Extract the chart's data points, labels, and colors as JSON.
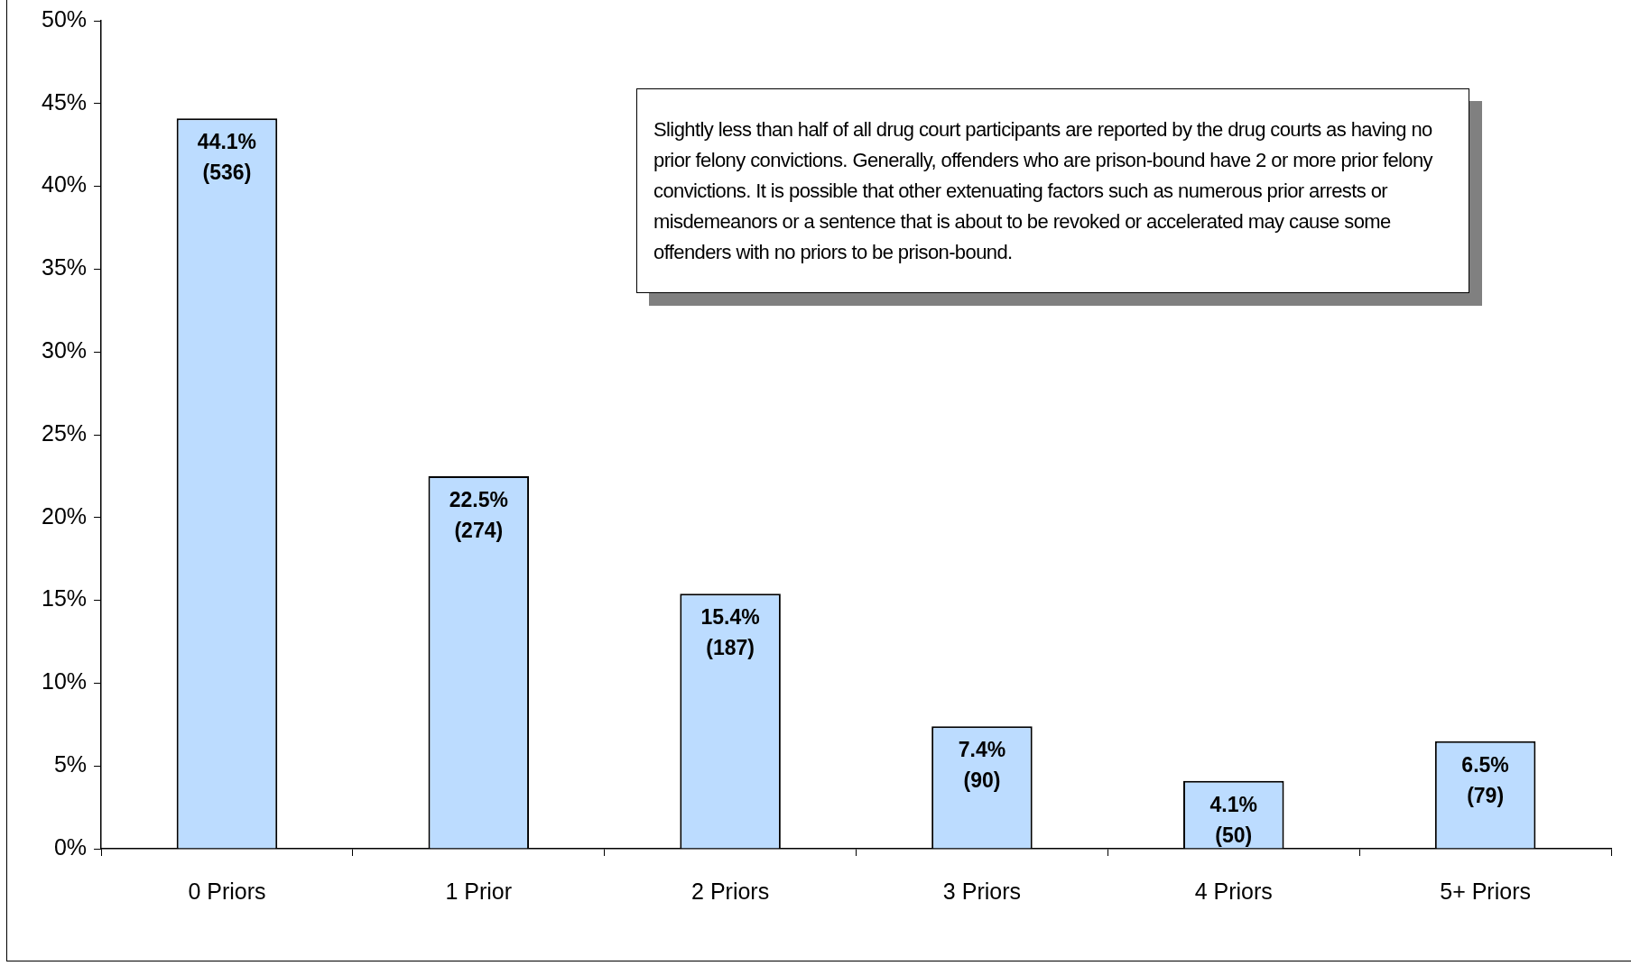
{
  "chart_data": {
    "type": "bar",
    "categories": [
      "0 Priors",
      "1 Prior",
      "2 Priors",
      "3 Priors",
      "4 Priors",
      "5+ Priors"
    ],
    "values": [
      44.1,
      22.5,
      15.4,
      7.4,
      4.1,
      6.5
    ],
    "value_labels": [
      "44.1% (536)",
      "22.5% (274)",
      "15.4% (187)",
      "7.4% (90)",
      "4.1% (50)",
      "6.5% (79)"
    ],
    "color": "#bcdcff",
    "ylim": [
      0,
      50
    ],
    "yticks": [
      {
        "value": 0,
        "label": "0%"
      },
      {
        "value": 5,
        "label": "5%"
      },
      {
        "value": 10,
        "label": "10%"
      },
      {
        "value": 15,
        "label": "15%"
      },
      {
        "value": 20,
        "label": "20%"
      },
      {
        "value": 25,
        "label": "25%"
      },
      {
        "value": 30,
        "label": "30%"
      },
      {
        "value": 35,
        "label": "35%"
      },
      {
        "value": 40,
        "label": "40%"
      },
      {
        "value": 45,
        "label": "45%"
      },
      {
        "value": 50,
        "label": "50%"
      }
    ],
    "grid": false,
    "legend": false,
    "annotations": [
      "Slightly less than half of all drug court participants are reported by the drug courts as having no prior felony convictions.  Generally, offenders who are prison-bound have 2 or more prior felony convictions.  It is possible that other extenuating factors such as numerous prior arrests or misdemeanors or a sentence that is about to be revoked or accelerated may cause some offenders with no priors to be prison-bound."
    ]
  }
}
